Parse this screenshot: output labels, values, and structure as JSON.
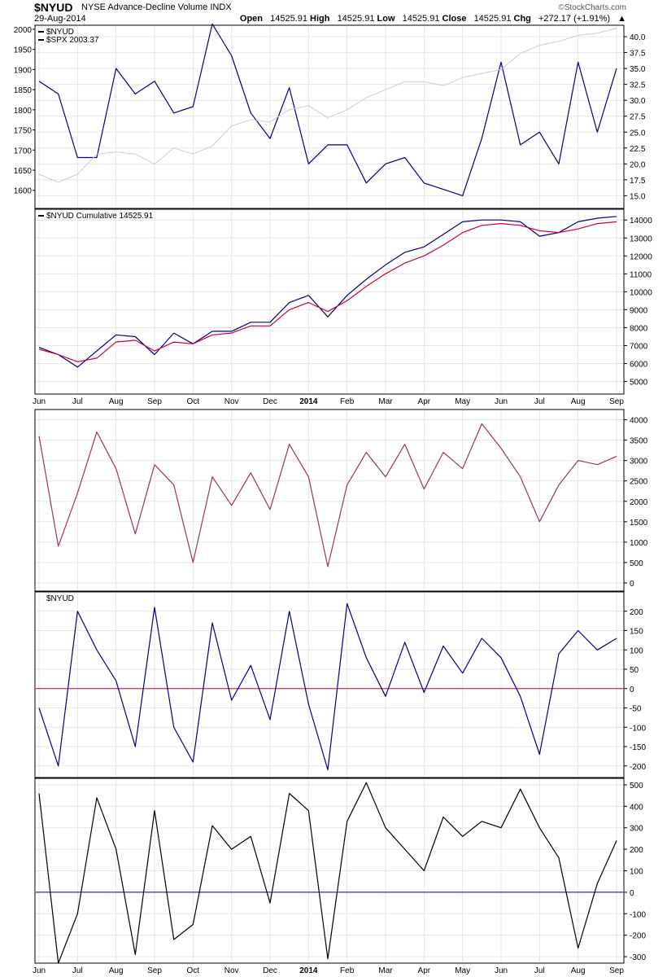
{
  "header": {
    "symbol": "$NYUD",
    "name": "NYSE Advance-Decline Volume INDX",
    "date": "29-Aug-2014",
    "brand": "StockCharts.com",
    "brand_mark": "©",
    "open_label": "Open",
    "open": "14525.91",
    "high_label": "High",
    "high": "14525.91",
    "low_label": "Low",
    "low": "14525.91",
    "close_label": "Close",
    "close": "14525.91",
    "chg_label": "Chg",
    "chg": "+272.17 (+1.91%)",
    "chg_arrow": "▲"
  },
  "x_axis": {
    "labels": [
      "Jun",
      "Jul",
      "Aug",
      "Sep",
      "Oct",
      "Nov",
      "Dec",
      "2014",
      "Feb",
      "Mar",
      "Apr",
      "May",
      "Jun",
      "Jul",
      "Aug",
      "Sep"
    ],
    "bold_label": "2014"
  },
  "chart_data": [
    {
      "type": "line",
      "panel": "price",
      "legend": [
        "$NYUD",
        "$SPX 2003.37"
      ],
      "left_axis": {
        "ticks": [
          1600,
          1650,
          1700,
          1750,
          1800,
          1850,
          1900,
          1950,
          2000
        ],
        "ylim": [
          1555,
          2010
        ]
      },
      "right_axis": {
        "ticks": [
          15.0,
          17.5,
          20.0,
          22.5,
          25.0,
          27.5,
          30.0,
          32.5,
          35.0,
          37.5,
          40.0
        ],
        "ylim": [
          13.0,
          41.8
        ]
      },
      "series": [
        {
          "name": "$NYUD",
          "axis": "right",
          "color": "#000080",
          "x": [
            0,
            0.5,
            1,
            1.5,
            2,
            2.5,
            3,
            3.5,
            4,
            4.5,
            5,
            5.5,
            6,
            6.5,
            7,
            7.5,
            8,
            8.5,
            9,
            9.5,
            10,
            10.5,
            11,
            11.5,
            12,
            12.5,
            13,
            13.5,
            14,
            14.5,
            15
          ],
          "values": [
            33,
            31,
            21,
            21,
            35,
            31,
            33,
            28,
            29,
            42,
            37,
            28,
            24,
            32,
            20,
            23,
            23,
            17,
            20,
            21,
            17,
            16,
            15,
            24,
            36,
            23,
            25,
            20,
            36,
            25,
            35
          ]
        },
        {
          "name": "$SPX",
          "axis": "left",
          "color": "#cccccc",
          "x": [
            0,
            0.5,
            1,
            1.5,
            2,
            2.5,
            3,
            3.5,
            4,
            4.5,
            5,
            5.5,
            6,
            6.5,
            7,
            7.5,
            8,
            8.5,
            9,
            9.5,
            10,
            10.5,
            11,
            11.5,
            12,
            12.5,
            13,
            13.5,
            14,
            14.5,
            15
          ],
          "values": [
            1640,
            1620,
            1640,
            1690,
            1695,
            1690,
            1665,
            1705,
            1690,
            1710,
            1760,
            1775,
            1770,
            1800,
            1810,
            1780,
            1800,
            1830,
            1850,
            1870,
            1870,
            1860,
            1880,
            1890,
            1900,
            1940,
            1960,
            1970,
            1985,
            1990,
            2003
          ]
        }
      ]
    },
    {
      "type": "line",
      "panel": "cumulative",
      "legend": [
        "$NYUD Cumulative 14525.91"
      ],
      "right_axis": {
        "ticks": [
          5000,
          6000,
          7000,
          8000,
          9000,
          10000,
          11000,
          12000,
          13000,
          14000
        ],
        "ylim": [
          4300,
          14600
        ]
      },
      "series": [
        {
          "name": "$NYUD Cumulative",
          "color": "#000080",
          "x": [
            0,
            0.5,
            1,
            1.5,
            2,
            2.5,
            3,
            3.5,
            4,
            4.5,
            5,
            5.5,
            6,
            6.5,
            7,
            7.5,
            8,
            8.5,
            9,
            9.5,
            10,
            10.5,
            11,
            11.5,
            12,
            12.5,
            13,
            13.5,
            14,
            14.5,
            15
          ],
          "values": [
            6900,
            6500,
            5800,
            6700,
            7600,
            7500,
            6500,
            7700,
            7100,
            7800,
            7800,
            8300,
            8300,
            9400,
            9800,
            8600,
            9800,
            10700,
            11500,
            12200,
            12500,
            13200,
            13900,
            14000,
            14000,
            13900,
            13100,
            13300,
            13900,
            14100,
            14200
          ]
        },
        {
          "name": "Moving average",
          "color": "#cc0033",
          "x": [
            0,
            0.5,
            1,
            1.5,
            2,
            2.5,
            3,
            3.5,
            4,
            4.5,
            5,
            5.5,
            6,
            6.5,
            7,
            7.5,
            8,
            8.5,
            9,
            9.5,
            10,
            10.5,
            11,
            11.5,
            12,
            12.5,
            13,
            13.5,
            14,
            14.5,
            15
          ],
          "values": [
            6800,
            6500,
            6100,
            6300,
            7200,
            7300,
            6700,
            7200,
            7100,
            7600,
            7700,
            8100,
            8100,
            9000,
            9400,
            8900,
            9500,
            10300,
            11000,
            11600,
            12000,
            12600,
            13300,
            13700,
            13800,
            13700,
            13400,
            13300,
            13500,
            13800,
            13900
          ]
        }
      ]
    },
    {
      "type": "line",
      "panel": "oscillator-1",
      "right_axis": {
        "ticks": [
          0,
          500,
          1000,
          1500,
          2000,
          2500,
          3000,
          3500,
          4000
        ],
        "ylim": [
          -200,
          4250
        ]
      },
      "series": [
        {
          "name": "Indicator",
          "color": "#993366",
          "x": [
            0,
            0.5,
            1,
            1.5,
            2,
            2.5,
            3,
            3.5,
            4,
            4.5,
            5,
            5.5,
            6,
            6.5,
            7,
            7.5,
            8,
            8.5,
            9,
            9.5,
            10,
            10.5,
            11,
            11.5,
            12,
            12.5,
            13,
            13.5,
            14,
            14.5,
            15
          ],
          "values": [
            3600,
            900,
            2200,
            3700,
            2800,
            1200,
            2900,
            2400,
            500,
            2600,
            1900,
            2700,
            1800,
            3400,
            2600,
            400,
            2400,
            3200,
            2600,
            3400,
            2300,
            3200,
            2800,
            3900,
            3300,
            2600,
            1500,
            2400,
            3000,
            2900,
            3100
          ]
        }
      ]
    },
    {
      "type": "line",
      "panel": "oscillator-2",
      "legend": [
        "$NYUD"
      ],
      "right_axis": {
        "ticks": [
          -200,
          -150,
          -100,
          -50,
          0,
          50,
          100,
          150,
          200
        ],
        "ylim": [
          -230,
          250
        ]
      },
      "reference_line": 0,
      "series": [
        {
          "name": "$NYUD",
          "color": "#000080",
          "x": [
            0,
            0.5,
            1,
            1.5,
            2,
            2.5,
            3,
            3.5,
            4,
            4.5,
            5,
            5.5,
            6,
            6.5,
            7,
            7.5,
            8,
            8.5,
            9,
            9.5,
            10,
            10.5,
            11,
            11.5,
            12,
            12.5,
            13,
            13.5,
            14,
            14.5,
            15
          ],
          "values": [
            -50,
            -200,
            200,
            100,
            20,
            -150,
            210,
            -100,
            -190,
            170,
            -30,
            60,
            -80,
            200,
            -40,
            -210,
            220,
            80,
            -20,
            120,
            -10,
            110,
            40,
            130,
            80,
            -20,
            -170,
            90,
            150,
            100,
            130
          ]
        }
      ]
    },
    {
      "type": "line",
      "panel": "oscillator-3",
      "right_axis": {
        "ticks": [
          -300,
          -200,
          -100,
          0,
          100,
          200,
          300,
          400,
          500
        ],
        "ylim": [
          -330,
          530
        ]
      },
      "reference_line": 0,
      "series": [
        {
          "name": "Indicator",
          "color": "#000000",
          "x": [
            0,
            0.5,
            1,
            1.5,
            2,
            2.5,
            3,
            3.5,
            4,
            4.5,
            5,
            5.5,
            6,
            6.5,
            7,
            7.5,
            8,
            8.5,
            9,
            9.5,
            10,
            10.5,
            11,
            11.5,
            12,
            12.5,
            13,
            13.5,
            14,
            14.5,
            15
          ],
          "values": [
            460,
            -330,
            -100,
            440,
            200,
            -290,
            380,
            -220,
            -150,
            310,
            200,
            260,
            -50,
            460,
            380,
            -310,
            330,
            510,
            300,
            200,
            100,
            350,
            260,
            330,
            300,
            480,
            300,
            160,
            -260,
            40,
            240
          ]
        }
      ]
    }
  ]
}
